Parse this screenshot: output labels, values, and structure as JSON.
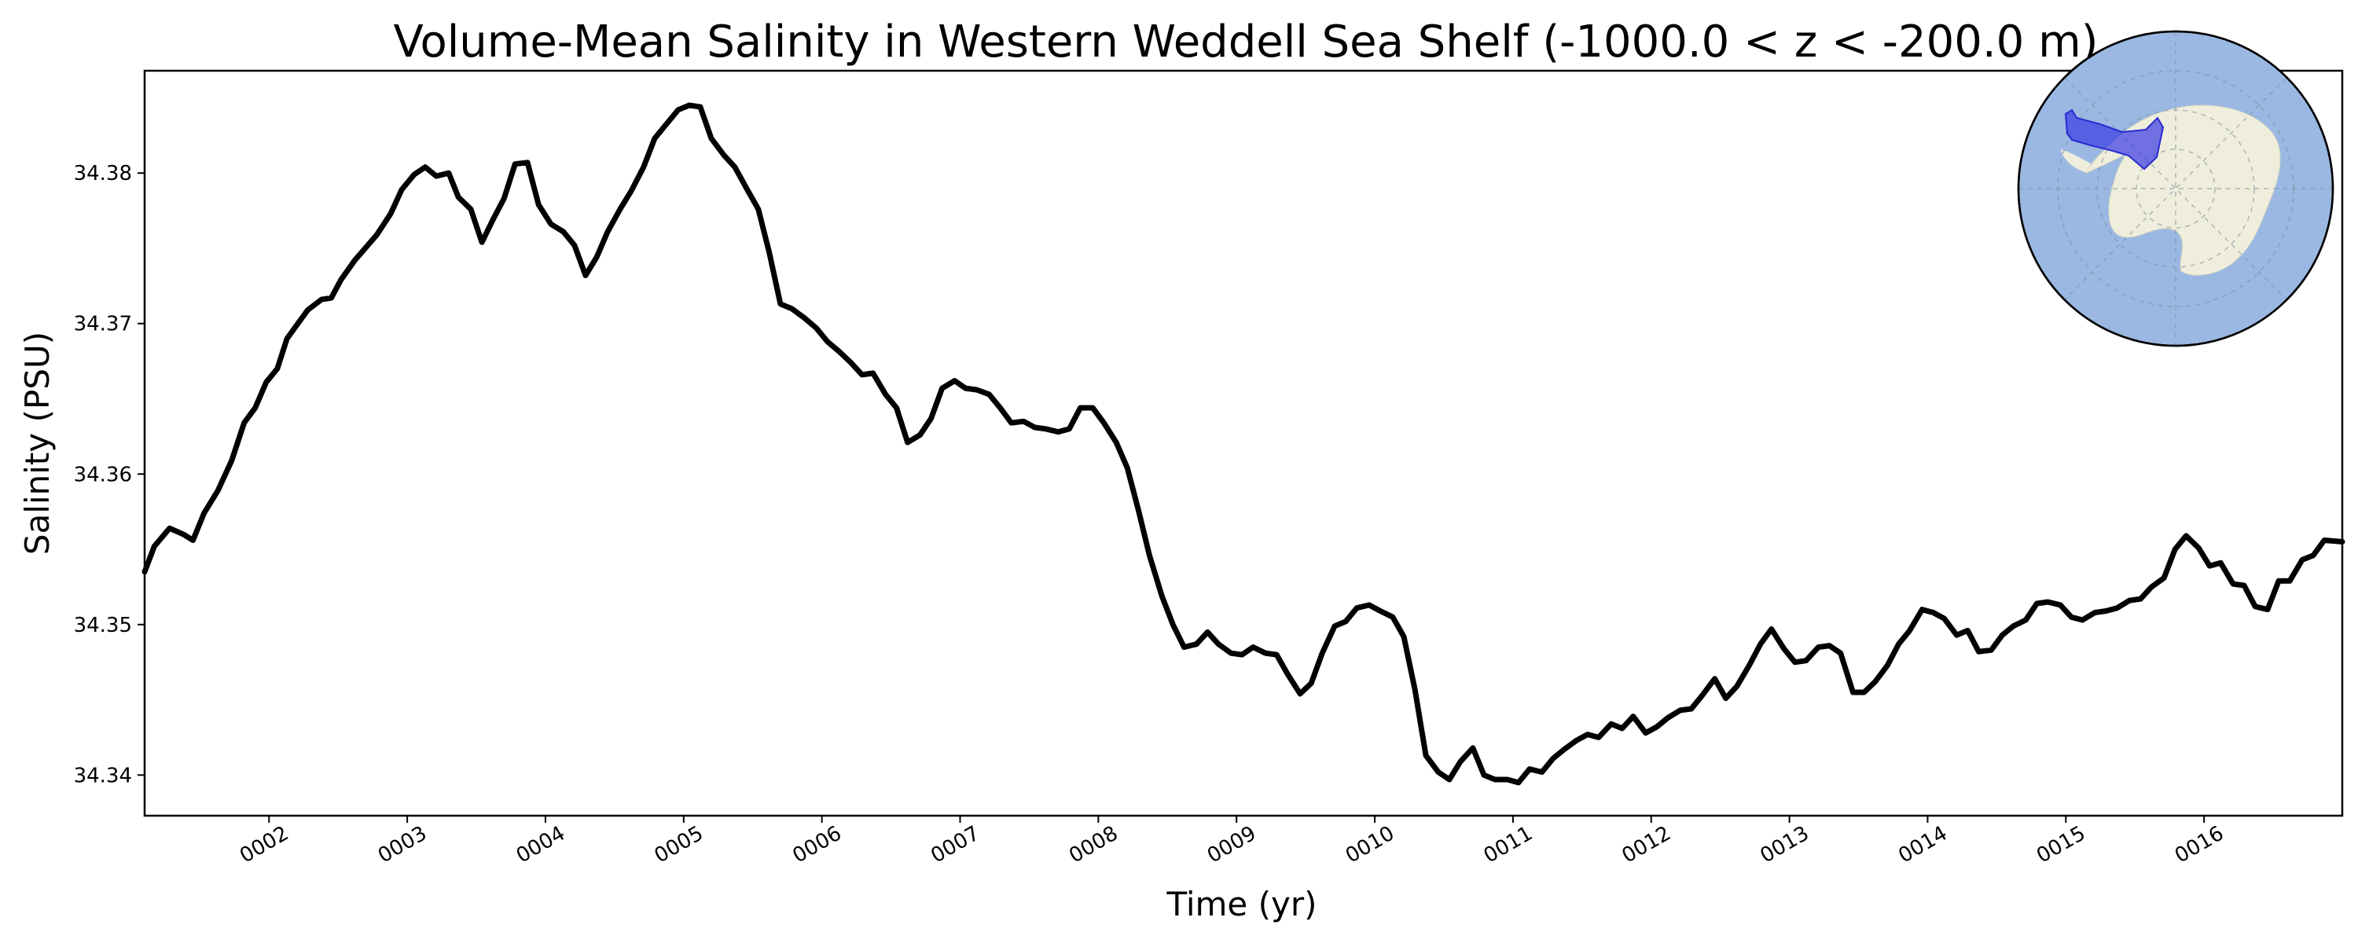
{
  "chart_data": {
    "type": "line",
    "title": "Volume-Mean Salinity in Western Weddell Sea Shelf (-1000.0 < z < -200.0 m)",
    "xlabel": "Time (yr)",
    "ylabel": "Salinity (PSU)",
    "x_ticks": [
      "0002",
      "0003",
      "0004",
      "0005",
      "0006",
      "0007",
      "0008",
      "0009",
      "0010",
      "0011",
      "0012",
      "0013",
      "0014",
      "0015",
      "0016"
    ],
    "y_ticks": [
      "34.34",
      "34.35",
      "34.36",
      "34.37",
      "34.38"
    ],
    "xlim": [
      1.1,
      17.0
    ],
    "ylim": [
      34.3373,
      34.3868
    ],
    "grid": false,
    "inset_map": "Antarctic polar map with Western Weddell Sea Shelf region highlighted in blue",
    "colors": {
      "line": "#000000",
      "ocean": "#9ab8e2",
      "land": "#efeedc",
      "region": "#3a3ae6"
    },
    "series": [
      {
        "values": [
          [
            1.1,
            34.3535
          ],
          [
            1.17,
            34.3552
          ],
          [
            1.28,
            34.3564
          ],
          [
            1.38,
            34.356
          ],
          [
            1.45,
            34.3556
          ],
          [
            1.53,
            34.3574
          ],
          [
            1.63,
            34.3589
          ],
          [
            1.73,
            34.3609
          ],
          [
            1.82,
            34.3634
          ],
          [
            1.9,
            34.3644
          ],
          [
            1.98,
            34.3661
          ],
          [
            2.06,
            34.367
          ],
          [
            2.13,
            34.369
          ],
          [
            2.28,
            34.3709
          ],
          [
            2.38,
            34.3716
          ],
          [
            2.45,
            34.3717
          ],
          [
            2.52,
            34.3729
          ],
          [
            2.62,
            34.3742
          ],
          [
            2.78,
            34.3759
          ],
          [
            2.88,
            34.3773
          ],
          [
            2.96,
            34.3789
          ],
          [
            3.05,
            34.3799
          ],
          [
            3.13,
            34.3804
          ],
          [
            3.21,
            34.3798
          ],
          [
            3.3,
            34.38
          ],
          [
            3.37,
            34.3784
          ],
          [
            3.46,
            34.3776
          ],
          [
            3.54,
            34.3754
          ],
          [
            3.62,
            34.3769
          ],
          [
            3.7,
            34.3783
          ],
          [
            3.78,
            34.3806
          ],
          [
            3.87,
            34.3807
          ],
          [
            3.95,
            34.3779
          ],
          [
            4.04,
            34.3766
          ],
          [
            4.13,
            34.3761
          ],
          [
            4.21,
            34.3752
          ],
          [
            4.29,
            34.3732
          ],
          [
            4.37,
            34.3744
          ],
          [
            4.45,
            34.3761
          ],
          [
            4.54,
            34.3776
          ],
          [
            4.62,
            34.3788
          ],
          [
            4.71,
            34.3804
          ],
          [
            4.79,
            34.3823
          ],
          [
            4.87,
            34.3832
          ],
          [
            4.96,
            34.3842
          ],
          [
            5.04,
            34.3845
          ],
          [
            5.12,
            34.3844
          ],
          [
            5.2,
            34.3823
          ],
          [
            5.29,
            34.3812
          ],
          [
            5.37,
            34.3804
          ],
          [
            5.46,
            34.3789
          ],
          [
            5.54,
            34.3776
          ],
          [
            5.62,
            34.3747
          ],
          [
            5.7,
            34.3713
          ],
          [
            5.78,
            34.371
          ],
          [
            5.87,
            34.3704
          ],
          [
            5.96,
            34.3697
          ],
          [
            6.04,
            34.3688
          ],
          [
            6.13,
            34.3681
          ],
          [
            6.21,
            34.3674
          ],
          [
            6.29,
            34.3666
          ],
          [
            6.37,
            34.3667
          ],
          [
            6.46,
            34.3653
          ],
          [
            6.54,
            34.3644
          ],
          [
            6.62,
            34.3621
          ],
          [
            6.71,
            34.3626
          ],
          [
            6.79,
            34.3637
          ],
          [
            6.87,
            34.3657
          ],
          [
            6.96,
            34.3662
          ],
          [
            7.04,
            34.3657
          ],
          [
            7.12,
            34.3656
          ],
          [
            7.21,
            34.3653
          ],
          [
            7.29,
            34.3644
          ],
          [
            7.37,
            34.3634
          ],
          [
            7.46,
            34.3635
          ],
          [
            7.54,
            34.3631
          ],
          [
            7.62,
            34.363
          ],
          [
            7.71,
            34.3628
          ],
          [
            7.79,
            34.363
          ],
          [
            7.87,
            34.3644
          ],
          [
            7.96,
            34.3644
          ],
          [
            8.04,
            34.3634
          ],
          [
            8.13,
            34.3621
          ],
          [
            8.21,
            34.3604
          ],
          [
            8.29,
            34.3576
          ],
          [
            8.37,
            34.3546
          ],
          [
            8.46,
            34.3519
          ],
          [
            8.54,
            34.35
          ],
          [
            8.62,
            34.3485
          ],
          [
            8.71,
            34.3487
          ],
          [
            8.79,
            34.3495
          ],
          [
            8.87,
            34.3487
          ],
          [
            8.96,
            34.3481
          ],
          [
            9.04,
            34.348
          ],
          [
            9.12,
            34.3485
          ],
          [
            9.21,
            34.3481
          ],
          [
            9.29,
            34.348
          ],
          [
            9.37,
            34.3467
          ],
          [
            9.46,
            34.3454
          ],
          [
            9.54,
            34.3461
          ],
          [
            9.62,
            34.3481
          ],
          [
            9.71,
            34.3499
          ],
          [
            9.79,
            34.3502
          ],
          [
            9.87,
            34.3511
          ],
          [
            9.96,
            34.3513
          ],
          [
            10.04,
            34.3509
          ],
          [
            10.13,
            34.3505
          ],
          [
            10.21,
            34.3492
          ],
          [
            10.29,
            34.3457
          ],
          [
            10.37,
            34.3413
          ],
          [
            10.46,
            34.3402
          ],
          [
            10.54,
            34.3397
          ],
          [
            10.62,
            34.3409
          ],
          [
            10.71,
            34.3418
          ],
          [
            10.79,
            34.34
          ],
          [
            10.87,
            34.3397
          ],
          [
            10.96,
            34.3397
          ],
          [
            11.04,
            34.3395
          ],
          [
            11.12,
            34.3404
          ],
          [
            11.21,
            34.3402
          ],
          [
            11.29,
            34.3411
          ],
          [
            11.37,
            34.3417
          ],
          [
            11.46,
            34.3423
          ],
          [
            11.54,
            34.3427
          ],
          [
            11.62,
            34.3425
          ],
          [
            11.71,
            34.3434
          ],
          [
            11.79,
            34.3431
          ],
          [
            11.87,
            34.3439
          ],
          [
            11.96,
            34.3428
          ],
          [
            12.04,
            34.3432
          ],
          [
            12.12,
            34.3438
          ],
          [
            12.21,
            34.3443
          ],
          [
            12.29,
            34.3444
          ],
          [
            12.37,
            34.3453
          ],
          [
            12.46,
            34.3464
          ],
          [
            12.54,
            34.3451
          ],
          [
            12.62,
            34.3459
          ],
          [
            12.71,
            34.3473
          ],
          [
            12.79,
            34.3487
          ],
          [
            12.87,
            34.3497
          ],
          [
            12.96,
            34.3484
          ],
          [
            13.04,
            34.3475
          ],
          [
            13.12,
            34.3476
          ],
          [
            13.21,
            34.3485
          ],
          [
            13.29,
            34.3486
          ],
          [
            13.37,
            34.3481
          ],
          [
            13.46,
            34.3455
          ],
          [
            13.54,
            34.3455
          ],
          [
            13.62,
            34.3462
          ],
          [
            13.71,
            34.3473
          ],
          [
            13.79,
            34.3487
          ],
          [
            13.87,
            34.3496
          ],
          [
            13.96,
            34.351
          ],
          [
            14.04,
            34.3508
          ],
          [
            14.12,
            34.3504
          ],
          [
            14.21,
            34.3493
          ],
          [
            14.29,
            34.3496
          ],
          [
            14.37,
            34.3482
          ],
          [
            14.46,
            34.3483
          ],
          [
            14.54,
            34.3493
          ],
          [
            14.62,
            34.3499
          ],
          [
            14.71,
            34.3503
          ],
          [
            14.79,
            34.3514
          ],
          [
            14.87,
            34.3515
          ],
          [
            14.96,
            34.3513
          ],
          [
            15.04,
            34.3505
          ],
          [
            15.12,
            34.3503
          ],
          [
            15.21,
            34.3508
          ],
          [
            15.29,
            34.3509
          ],
          [
            15.37,
            34.3511
          ],
          [
            15.46,
            34.3516
          ],
          [
            15.54,
            34.3517
          ],
          [
            15.62,
            34.3525
          ],
          [
            15.71,
            34.3531
          ],
          [
            15.79,
            34.355
          ],
          [
            15.87,
            34.3559
          ],
          [
            15.96,
            34.3551
          ],
          [
            16.04,
            34.3539
          ],
          [
            16.12,
            34.3541
          ],
          [
            16.21,
            34.3527
          ],
          [
            16.29,
            34.3526
          ],
          [
            16.37,
            34.3512
          ],
          [
            16.46,
            34.351
          ],
          [
            16.54,
            34.3529
          ],
          [
            16.62,
            34.3529
          ],
          [
            16.71,
            34.3543
          ],
          [
            16.79,
            34.3546
          ],
          [
            16.87,
            34.3556
          ],
          [
            17.0,
            34.3555
          ]
        ]
      }
    ]
  }
}
